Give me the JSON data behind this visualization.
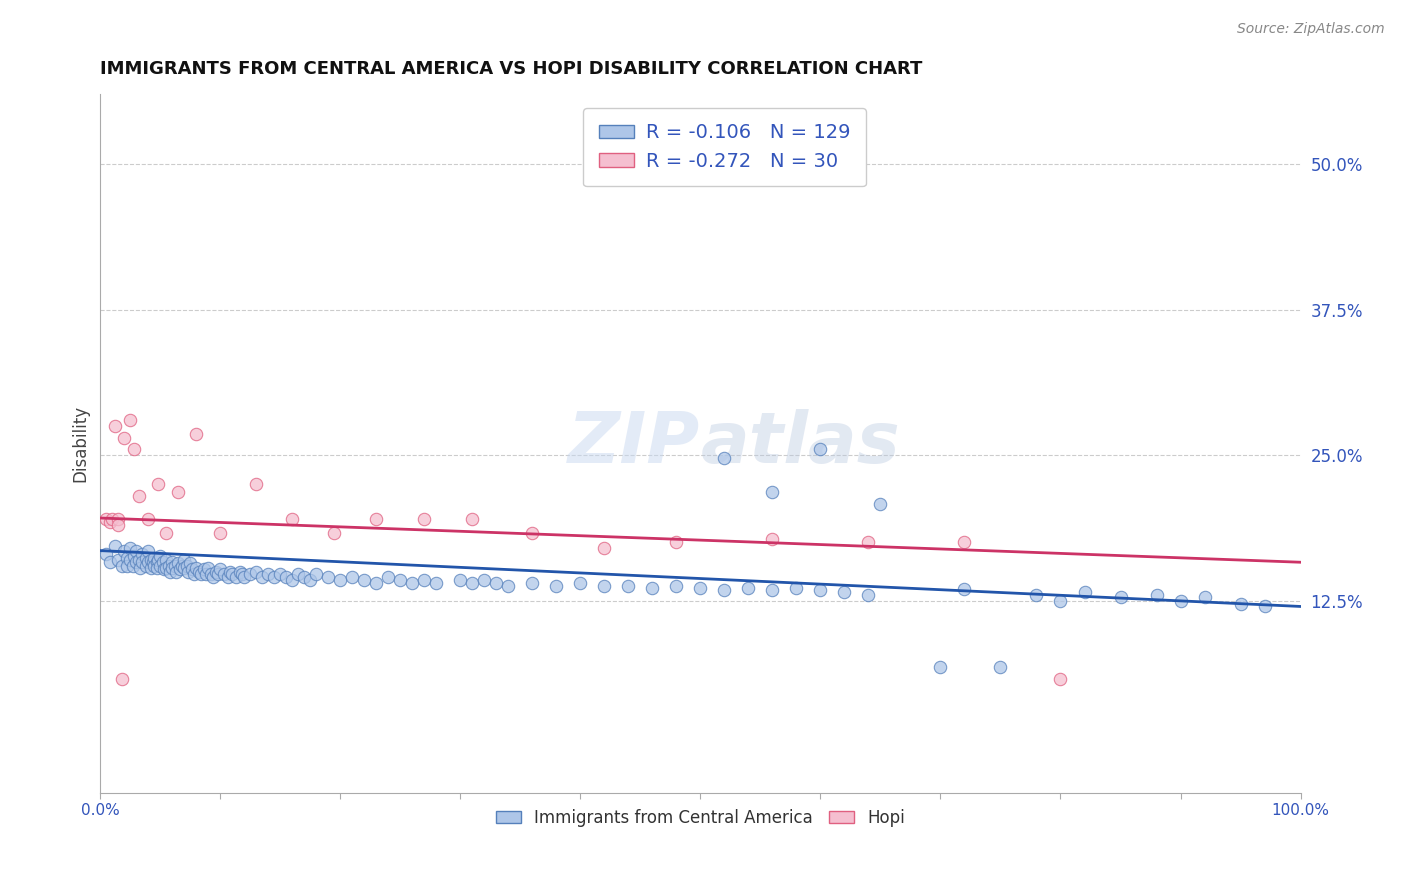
{
  "title": "IMMIGRANTS FROM CENTRAL AMERICA VS HOPI DISABILITY CORRELATION CHART",
  "source": "Source: ZipAtlas.com",
  "ylabel": "Disability",
  "xlim": [
    0,
    1.0
  ],
  "ylim": [
    -0.04,
    0.56
  ],
  "yticks": [
    0.125,
    0.25,
    0.375,
    0.5
  ],
  "ytick_labels": [
    "12.5%",
    "25.0%",
    "37.5%",
    "50.0%"
  ],
  "xticks": [
    0.0,
    0.1,
    0.2,
    0.3,
    0.4,
    0.5,
    0.6,
    0.7,
    0.8,
    0.9,
    1.0
  ],
  "blue_R": -0.106,
  "blue_N": 129,
  "pink_R": -0.272,
  "pink_N": 30,
  "blue_color": "#aec6e8",
  "blue_edge_color": "#5580bb",
  "pink_color": "#f5bfd0",
  "pink_edge_color": "#e06080",
  "blue_line_color": "#2255aa",
  "pink_line_color": "#cc3366",
  "grid_color": "#cccccc",
  "background_color": "#ffffff",
  "title_color": "#111111",
  "axis_label_color": "#444444",
  "tick_label_color": "#3355bb",
  "watermark_color": "#d8e4f0",
  "blue_trend_x0": 0.0,
  "blue_trend_y0": 0.168,
  "blue_trend_x1": 1.0,
  "blue_trend_y1": 0.12,
  "pink_trend_x0": 0.0,
  "pink_trend_y0": 0.196,
  "pink_trend_x1": 1.0,
  "pink_trend_y1": 0.158,
  "blue_scatter_x": [
    0.005,
    0.008,
    0.012,
    0.015,
    0.018,
    0.02,
    0.022,
    0.022,
    0.025,
    0.025,
    0.027,
    0.028,
    0.03,
    0.03,
    0.032,
    0.033,
    0.035,
    0.035,
    0.038,
    0.038,
    0.04,
    0.04,
    0.042,
    0.042,
    0.044,
    0.045,
    0.045,
    0.047,
    0.047,
    0.048,
    0.05,
    0.05,
    0.052,
    0.053,
    0.055,
    0.055,
    0.057,
    0.058,
    0.06,
    0.06,
    0.062,
    0.063,
    0.065,
    0.066,
    0.068,
    0.07,
    0.07,
    0.072,
    0.073,
    0.075,
    0.076,
    0.078,
    0.08,
    0.082,
    0.084,
    0.086,
    0.088,
    0.09,
    0.092,
    0.094,
    0.096,
    0.098,
    0.1,
    0.103,
    0.106,
    0.108,
    0.11,
    0.113,
    0.116,
    0.118,
    0.12,
    0.125,
    0.13,
    0.135,
    0.14,
    0.145,
    0.15,
    0.155,
    0.16,
    0.165,
    0.17,
    0.175,
    0.18,
    0.19,
    0.2,
    0.21,
    0.22,
    0.23,
    0.24,
    0.25,
    0.26,
    0.27,
    0.28,
    0.3,
    0.31,
    0.32,
    0.33,
    0.34,
    0.36,
    0.38,
    0.4,
    0.42,
    0.44,
    0.46,
    0.48,
    0.5,
    0.52,
    0.54,
    0.56,
    0.58,
    0.6,
    0.62,
    0.64,
    0.52,
    0.56,
    0.6,
    0.65,
    0.7,
    0.72,
    0.75,
    0.78,
    0.8,
    0.82,
    0.85,
    0.88,
    0.9,
    0.92,
    0.95,
    0.97
  ],
  "blue_scatter_y": [
    0.165,
    0.158,
    0.172,
    0.16,
    0.155,
    0.168,
    0.162,
    0.155,
    0.17,
    0.16,
    0.155,
    0.163,
    0.168,
    0.158,
    0.16,
    0.153,
    0.165,
    0.158,
    0.162,
    0.155,
    0.168,
    0.158,
    0.16,
    0.153,
    0.158,
    0.162,
    0.155,
    0.158,
    0.153,
    0.16,
    0.163,
    0.155,
    0.158,
    0.152,
    0.16,
    0.153,
    0.155,
    0.15,
    0.158,
    0.153,
    0.155,
    0.15,
    0.157,
    0.152,
    0.155,
    0.16,
    0.153,
    0.155,
    0.15,
    0.157,
    0.152,
    0.148,
    0.153,
    0.15,
    0.148,
    0.152,
    0.148,
    0.153,
    0.148,
    0.145,
    0.15,
    0.148,
    0.152,
    0.148,
    0.145,
    0.15,
    0.148,
    0.145,
    0.15,
    0.148,
    0.145,
    0.148,
    0.15,
    0.145,
    0.148,
    0.145,
    0.148,
    0.145,
    0.143,
    0.148,
    0.145,
    0.143,
    0.148,
    0.145,
    0.143,
    0.145,
    0.143,
    0.14,
    0.145,
    0.143,
    0.14,
    0.143,
    0.14,
    0.143,
    0.14,
    0.143,
    0.14,
    0.138,
    0.14,
    0.138,
    0.14,
    0.138,
    0.138,
    0.136,
    0.138,
    0.136,
    0.134,
    0.136,
    0.134,
    0.136,
    0.134,
    0.132,
    0.13,
    0.248,
    0.218,
    0.255,
    0.208,
    0.068,
    0.135,
    0.068,
    0.13,
    0.125,
    0.132,
    0.128,
    0.13,
    0.125,
    0.128,
    0.122,
    0.12
  ],
  "pink_scatter_x": [
    0.005,
    0.008,
    0.01,
    0.012,
    0.015,
    0.015,
    0.018,
    0.02,
    0.025,
    0.028,
    0.032,
    0.04,
    0.048,
    0.055,
    0.065,
    0.08,
    0.1,
    0.13,
    0.16,
    0.195,
    0.23,
    0.27,
    0.31,
    0.36,
    0.42,
    0.48,
    0.56,
    0.64,
    0.72,
    0.8
  ],
  "pink_scatter_y": [
    0.195,
    0.193,
    0.195,
    0.275,
    0.195,
    0.19,
    0.058,
    0.265,
    0.28,
    0.255,
    0.215,
    0.195,
    0.225,
    0.183,
    0.218,
    0.268,
    0.183,
    0.225,
    0.195,
    0.183,
    0.195,
    0.195,
    0.195,
    0.183,
    0.17,
    0.175,
    0.178,
    0.175,
    0.175,
    0.058
  ]
}
